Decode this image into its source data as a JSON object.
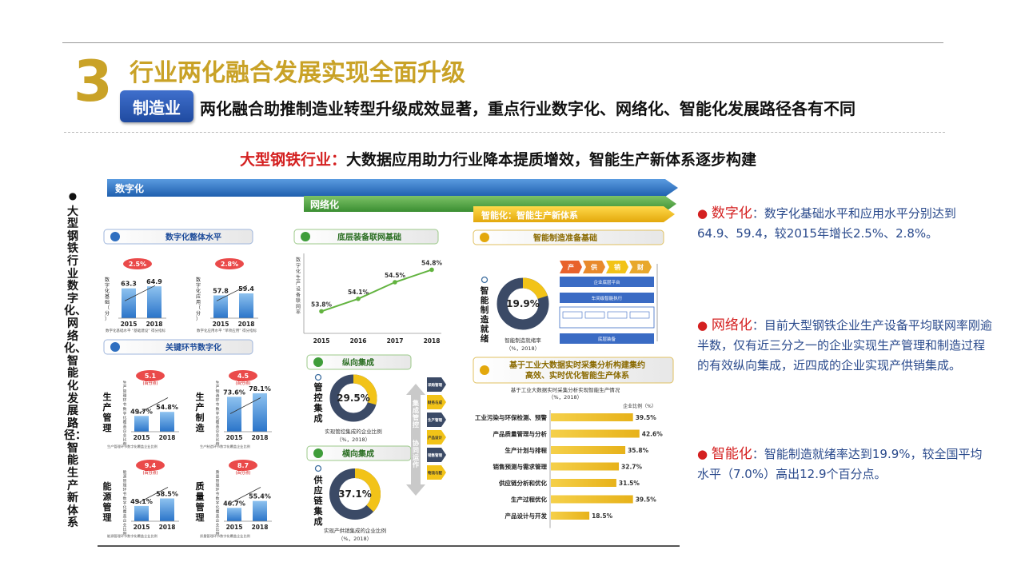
{
  "header": {
    "number": "3",
    "title": "行业两化融合发展实现全面升级",
    "tag": "制造业",
    "subtitle": "两化融合助推制造业转型升级成效显著，重点行业数字化、网络化、智能化发展路径各有不同"
  },
  "headline": {
    "highlight": "大型钢铁行业：",
    "rest": "大数据应用助力行业降本提质增效，智能生产新体系逐步构建"
  },
  "vertical_label": "大型钢铁行业数字化、网络化、智能化发展路径：智能生产新体系",
  "arrows": {
    "digital": "数字化",
    "network": "网络化",
    "intelligent": "智能化：智能生产新体系"
  },
  "digital": {
    "section1_title": "数字化整体水平",
    "section2_title": "关键环节数字化",
    "overall": [
      {
        "ylabel": "数字化基础（分）",
        "years": [
          "2015",
          "2018"
        ],
        "values": [
          63.3,
          64.9
        ],
        "growth": "2.5%",
        "note": "数字化基础水平 “基础建设” 得分指标"
      },
      {
        "ylabel": "数字化应用（分）",
        "years": [
          "2015",
          "2018"
        ],
        "values": [
          57.8,
          59.4
        ],
        "growth": "2.8%",
        "note": "数字化应用水平 “单项应用” 得分指标"
      }
    ],
    "key": [
      {
        "label": "生产管理",
        "years": [
          "2015",
          "2018"
        ],
        "values": [
          49.7,
          54.8
        ],
        "growth": "5.1",
        "unit": "(百分点)",
        "note": "生产管理环节数字化覆盖企业比例"
      },
      {
        "label": "生产制造",
        "years": [
          "2015",
          "2018"
        ],
        "values": [
          73.6,
          78.1
        ],
        "growth": "4.5",
        "unit": "(百分点)",
        "note": "生产制造环节数字化覆盖企业比例"
      },
      {
        "label": "能源管理",
        "years": [
          "2015",
          "2018"
        ],
        "values": [
          49.1,
          58.5
        ],
        "growth": "9.4",
        "unit": "(百分点)",
        "note": "能源管理环节数字化覆盖企业比例"
      },
      {
        "label": "质量管理",
        "years": [
          "2015",
          "2018"
        ],
        "values": [
          46.7,
          55.4
        ],
        "growth": "8.7",
        "unit": "(百分点)",
        "note": "质量管理环节数字化覆盖企业比例"
      }
    ]
  },
  "network": {
    "section1_title": "底层装备联网基础",
    "line_ylabel": "数字化生产设备联网率",
    "line": {
      "x": [
        "2015",
        "2016",
        "2017",
        "2018"
      ],
      "values": [
        53.8,
        54.1,
        54.5,
        54.8
      ],
      "labels": [
        "53.8%",
        "54.1%",
        "54.5%",
        "54.8%"
      ]
    },
    "vertical_title": "纵向集成",
    "vertical_label": "管控集成",
    "vertical_value": 29.5,
    "vertical_value_label": "29.5%",
    "vertical_caption": "实现管控集成的企业比例",
    "vertical_caption2": "（%，2018）",
    "horizontal_title": "横向集成",
    "horizontal_label": "供应链集成",
    "horizontal_value": 37.1,
    "horizontal_value_label": "37.1%",
    "horizontal_caption": "实现产供销集成的企业比例",
    "horizontal_caption2": "（%，2018）",
    "side_label1": "集成管控",
    "side_label2": "协同运作",
    "levels": [
      "采购管理",
      "财务与成本管理",
      "生产管理",
      "产品设计与研发",
      "销售管理",
      "物流与配送管理"
    ]
  },
  "intelligent": {
    "section1_title": "智能制造准备基础",
    "donut_label": "智能制造就绪",
    "donut_value": 19.9,
    "donut_value_label": "19.9%",
    "donut_caption": "智能制造就绪率",
    "donut_caption2": "（%，2018）",
    "flow_tags": [
      "产",
      "供",
      "销",
      "财"
    ],
    "flow_boxes": [
      "企业底层平台",
      "车间级智能执行",
      "底层装备"
    ],
    "section2_title": "基于工业大数据实时采集分析构建集约高效、实时优化智能生产体系",
    "bar_caption": "基于工业大数据实时采集分析实现智能生产情况",
    "bar_caption2": "（%，2018）",
    "bar_legend": "企业比例（%）",
    "chart_data": {
      "type": "bar",
      "categories": [
        "工业污染与环保检测、预警",
        "产品质量管理与分析",
        "生产计划与排程",
        "销售预测与需求管理",
        "供应链分析和优化",
        "生产过程优化",
        "产品设计与开发"
      ],
      "values": [
        39.5,
        42.6,
        35.8,
        32.7,
        31.5,
        39.5,
        18.5
      ],
      "labels": [
        "39.5%",
        "42.6%",
        "35.8%",
        "32.7%",
        "31.5%",
        "39.5%",
        "18.5%"
      ]
    }
  },
  "right_panel": [
    {
      "key": "数字化",
      "text": "：数字化基础水平和应用水平分别达到64.9、59.4，较2015年增长2.5%、2.8%。"
    },
    {
      "key": "网络化",
      "text": "：目前大型钢铁企业生产设备平均联网率刚逾半数，仅有近三分之一的企业实现生产管理和制造过程的有效纵向集成，近四成的企业实现产供销集成。"
    },
    {
      "key": "智能化",
      "text": "：智能制造就绪率达到19.9%，较全国平均水平（7.0%）高出12.9个百分点。"
    }
  ],
  "colors": {
    "gold": "#c9a227",
    "blue": "#2f6fc0",
    "green": "#3f9d3a",
    "yellow": "#f2c318",
    "red": "#d42020",
    "navy": "#3b4a66"
  }
}
